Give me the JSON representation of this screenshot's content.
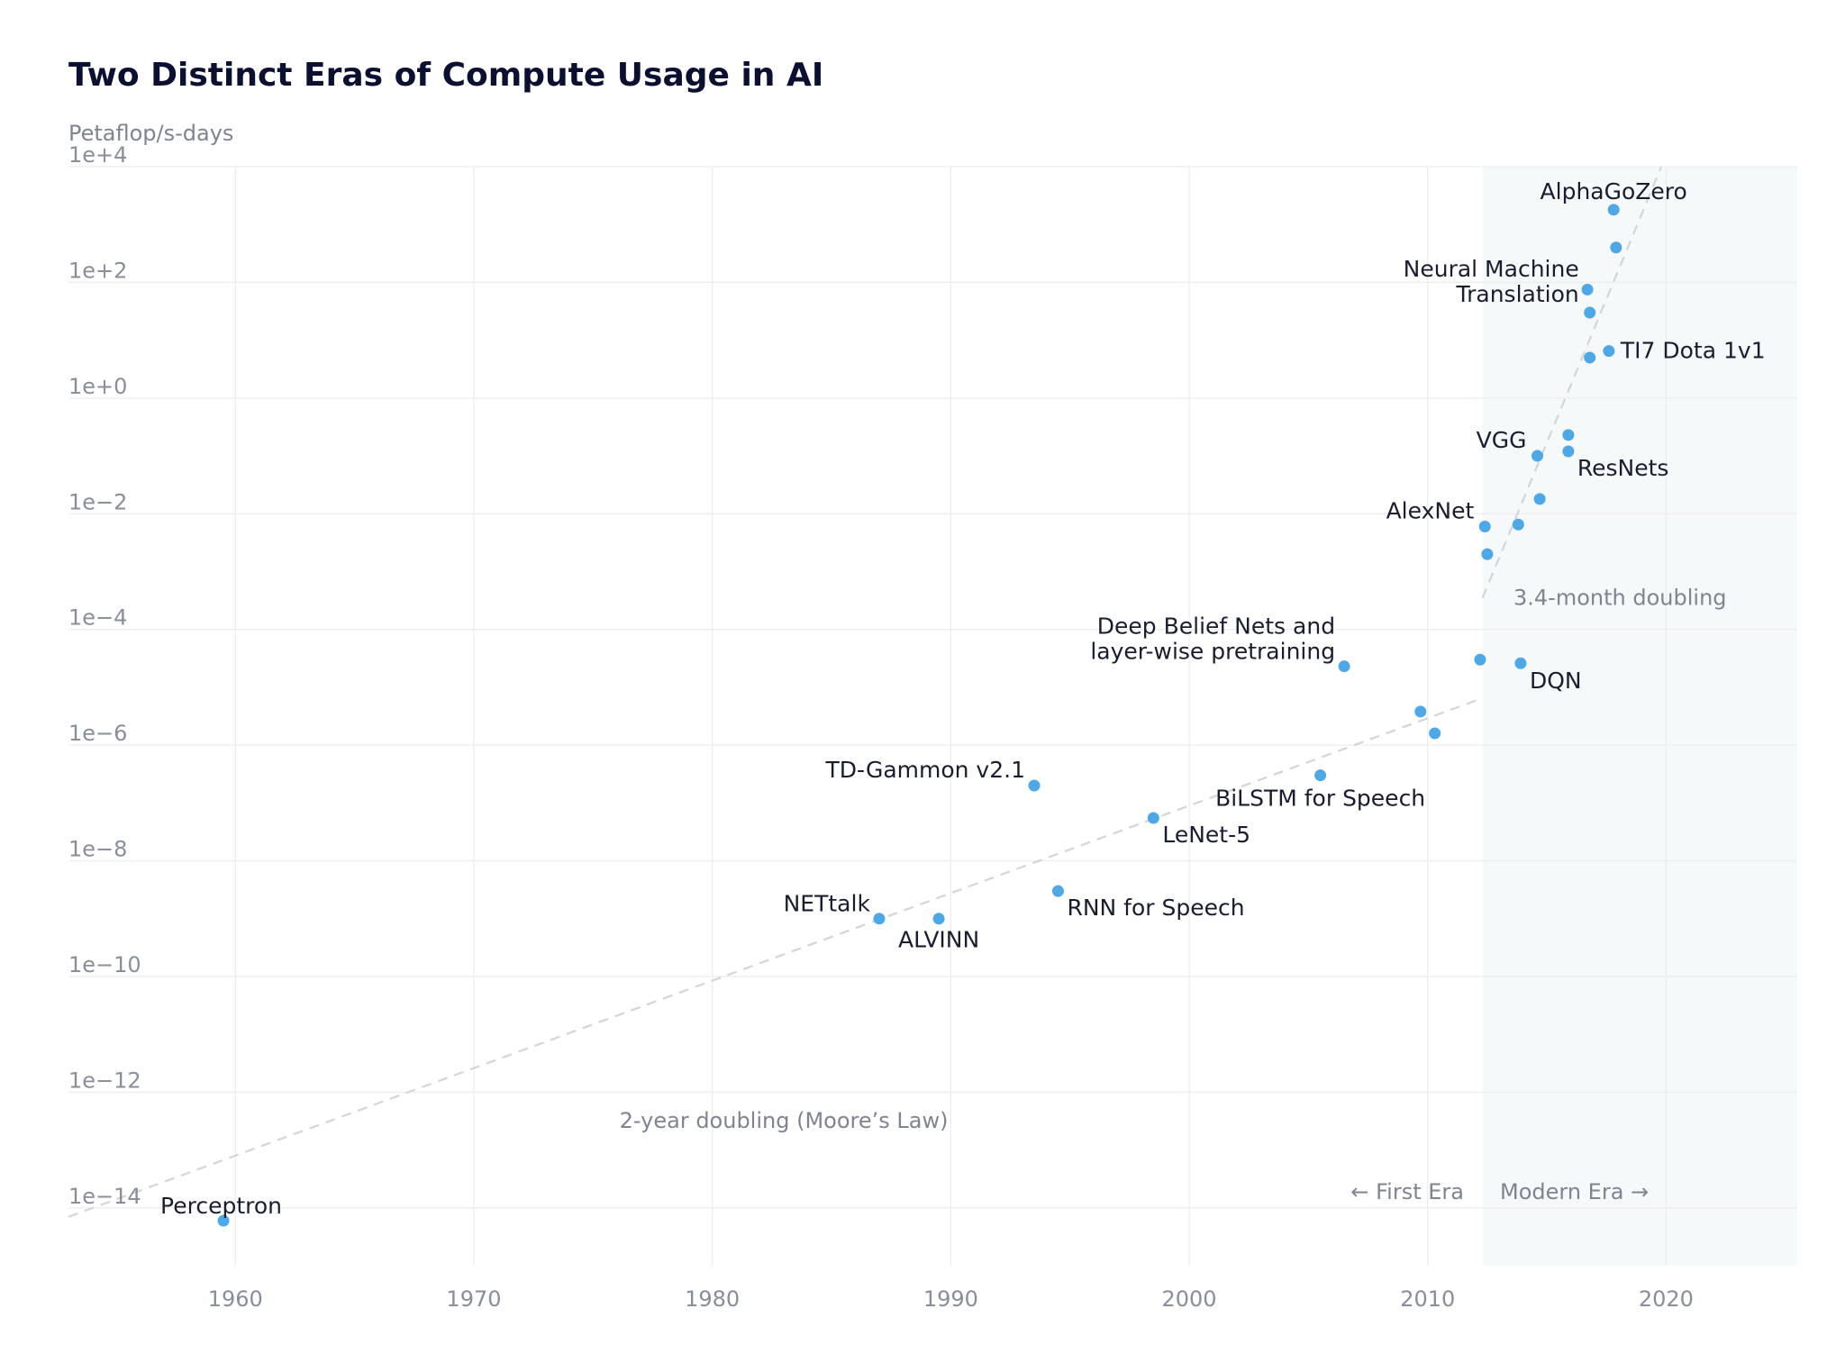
{
  "chart_data": {
    "type": "scatter",
    "title": "Two Distinct Eras of Compute Usage in AI",
    "ylabel": "Petaflop/s-days",
    "xlabel": "",
    "y_scale": "log",
    "xlim": [
      1953,
      2025.5
    ],
    "ylim": [
      1e-15,
      10000.0
    ],
    "x_ticks": [
      "1960",
      "1970",
      "1980",
      "1990",
      "2000",
      "2010",
      "2020"
    ],
    "x_tick_values": [
      1960,
      1970,
      1980,
      1990,
      2000,
      2010,
      2020
    ],
    "y_ticks": [
      "1e+4",
      "1e+2",
      "1e+0",
      "1e−2",
      "1e−4",
      "1e−6",
      "1e−8",
      "1e−10",
      "1e−12",
      "1e−14"
    ],
    "y_tick_exponents": [
      4,
      2,
      0,
      -2,
      -4,
      -6,
      -8,
      -10,
      -12,
      -14
    ],
    "grid": true,
    "point_color": "#4ea8e6",
    "points": [
      {
        "x": 1959.5,
        "y": 6e-15,
        "label": "Perceptron"
      },
      {
        "x": 1987.0,
        "y": 1e-09,
        "label": "NETtalk"
      },
      {
        "x": 1989.5,
        "y": 1e-09,
        "label": "ALVINN"
      },
      {
        "x": 1993.5,
        "y": 2e-07,
        "label": "TD-Gammon v2.1"
      },
      {
        "x": 1994.5,
        "y": 3e-09,
        "label": "RNN for Speech"
      },
      {
        "x": 1998.5,
        "y": 5.5e-08,
        "label": "LeNet-5"
      },
      {
        "x": 2005.5,
        "y": 3e-07,
        "label": "BiLSTM for Speech"
      },
      {
        "x": 2006.5,
        "y": 2.3e-05,
        "label": "Deep Belief Nets and layer-wise pretraining"
      },
      {
        "x": 2009.7,
        "y": 3.8e-06,
        "label": ""
      },
      {
        "x": 2010.3,
        "y": 1.6e-06,
        "label": ""
      },
      {
        "x": 2012.2,
        "y": 3e-05,
        "label": ""
      },
      {
        "x": 2012.4,
        "y": 0.006,
        "label": "AlexNet"
      },
      {
        "x": 2012.5,
        "y": 0.002,
        "label": ""
      },
      {
        "x": 2013.9,
        "y": 2.6e-05,
        "label": "DQN"
      },
      {
        "x": 2013.8,
        "y": 0.0065,
        "label": ""
      },
      {
        "x": 2014.7,
        "y": 0.018,
        "label": ""
      },
      {
        "x": 2014.6,
        "y": 0.1,
        "label": "VGG"
      },
      {
        "x": 2015.9,
        "y": 0.12,
        "label": "ResNets"
      },
      {
        "x": 2015.9,
        "y": 0.23,
        "label": ""
      },
      {
        "x": 2016.8,
        "y": 5,
        "label": ""
      },
      {
        "x": 2017.6,
        "y": 6.5,
        "label": "TI7 Dota 1v1"
      },
      {
        "x": 2016.8,
        "y": 30,
        "label": "Neural Machine Translation"
      },
      {
        "x": 2016.7,
        "y": 75,
        "label": ""
      },
      {
        "x": 2017.9,
        "y": 400,
        "label": ""
      },
      {
        "x": 2017.8,
        "y": 1800,
        "label": "AlphaGoZero"
      }
    ],
    "trend_lines": [
      {
        "label": "2-year doubling (Moore’s Law)",
        "x": [
          1953,
          2012.3
        ],
        "y": [
          7e-15,
          6.5e-06
        ]
      },
      {
        "label": "3.4-month doubling",
        "x": [
          2012.3,
          2019.8
        ],
        "y": [
          0.00035,
          10000
        ]
      }
    ],
    "shaded_region": {
      "x_start": 2012.3,
      "x_end": 2025.5,
      "color": "#f5f9fa"
    },
    "era_labels": {
      "first": "← First Era",
      "modern": "Modern Era →"
    }
  }
}
